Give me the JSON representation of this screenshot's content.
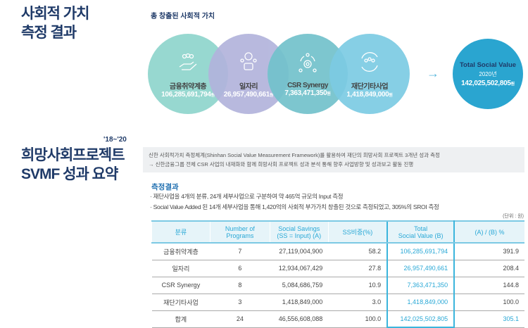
{
  "section1": {
    "title_line1": "사회적 가치",
    "title_line2": "측정 결과",
    "subtitle": "총 창출된 사회적 가치",
    "circles": [
      {
        "name": "금융취약계층",
        "value": "106,285,691,794",
        "unit": "원",
        "color": "#8fd5cd",
        "icon": "hand-people-icon"
      },
      {
        "name": "일자리",
        "value": "26,957,490,661",
        "unit": "원",
        "color": "#b2b4dc",
        "icon": "job-people-icon"
      },
      {
        "name": "CSR Synergy",
        "value": "7,363,471,350",
        "unit": "원",
        "color": "#72c2cc",
        "icon": "gear-people-icon"
      },
      {
        "name": "재단기타사업",
        "value": "1,418,849,000",
        "unit": "원",
        "color": "#7ccbe3",
        "icon": "group-cycle-icon"
      }
    ],
    "total": {
      "label": "Total Social Value",
      "year": "2020년",
      "value": "142,025,502,805",
      "unit": "원",
      "color": "#2aa5d0"
    }
  },
  "section2": {
    "period": "'18~'20",
    "title_line1": "희망사회프로젝트",
    "title_line2": "SVMF 성과 요약",
    "intro_line1": "신한 사회적가치 측정체계(Shinhan Social Value Measurement Framework)를 활용하여 재단의 희망사회 프로젝트 3개년 성과 측정",
    "intro_line2": "→ 신한금융그룹 전체 CSR 사업의 내재화와 함께 희망사회 프로젝트 성과 분석 통해 향후 사업방향 및 성과보고 활동 진행",
    "results_title": "측정결과",
    "bullet1": "· 재단사업을 4개의 분류, 24개 세부사업으로 구분하여 약 465억 규모의 Input 측정",
    "bullet2": "· Social Value Added 된 14개 세부사업을 통해 1,420억의 사회적 부가가치 창출된 것으로 측정되었고, 305%의 SROI 측정",
    "unit_note": "(단위 : 원)",
    "table": {
      "headers": [
        [
          "분류",
          ""
        ],
        [
          "Number of",
          "Programs"
        ],
        [
          "Social Savings",
          "(SS = Input) (A)"
        ],
        [
          "SS비중(%)",
          ""
        ],
        [
          "Total",
          "Social Value (B)"
        ],
        [
          "(A) / (B) %",
          ""
        ]
      ],
      "rows": [
        [
          "금융취약계층",
          "7",
          "27,119,004,900",
          "58.2",
          "106,285,691,794",
          "391.9"
        ],
        [
          "일자리",
          "6",
          "12,934,067,429",
          "27.8",
          "26,957,490,661",
          "208.4"
        ],
        [
          "CSR Synergy",
          "8",
          "5,084,686,759",
          "10.9",
          "7,363,471,350",
          "144.8"
        ],
        [
          "재단기타사업",
          "3",
          "1,418,849,000",
          "3.0",
          "1,418,849,000",
          "100.0"
        ],
        [
          "합계",
          "24",
          "46,556,608,088",
          "100.0",
          "142,025,502,805",
          "305.1"
        ]
      ]
    }
  }
}
